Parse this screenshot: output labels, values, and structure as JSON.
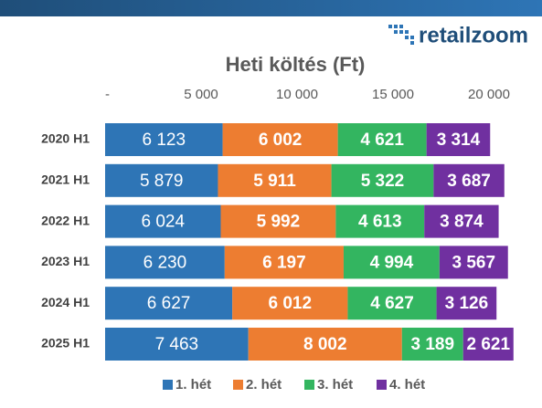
{
  "logo": "retailzoom",
  "chart_data": {
    "type": "stacked-bar-horizontal",
    "title": "Heti költés (Ft)",
    "categories": [
      "2020 H1",
      "2021 H1",
      "2022 H1",
      "2023 H1",
      "2024 H1",
      "2025 H1"
    ],
    "series": [
      {
        "name": "1. hét",
        "color": "#2e75b6",
        "values": [
          6123,
          5879,
          6024,
          6230,
          6627,
          7463
        ],
        "value_labels": [
          "6 123",
          "5 879",
          "6 024",
          "6 230",
          "6 627",
          "7 463"
        ]
      },
      {
        "name": "2. hét",
        "color": "#ed7d31",
        "values": [
          6002,
          5911,
          5992,
          6197,
          6012,
          8002
        ],
        "value_labels": [
          "6 002",
          "5 911",
          "5 992",
          "6 197",
          "6 012",
          "8 002"
        ]
      },
      {
        "name": "3. hét",
        "color": "#33b560",
        "values": [
          4621,
          5322,
          4613,
          4994,
          4627,
          3189
        ],
        "value_labels": [
          "4 621",
          "5 322",
          "4 613",
          "4 994",
          "4 627",
          "3 189"
        ]
      },
      {
        "name": "4. hét",
        "color": "#7030a0",
        "values": [
          3314,
          3687,
          3874,
          3567,
          3126,
          2621
        ],
        "value_labels": [
          "3 314",
          "3 687",
          "3 874",
          "3 567",
          "3 126",
          "2 621"
        ]
      }
    ],
    "xlim": [
      0,
      22000
    ],
    "xticks": [
      {
        "value": 0,
        "label": "-"
      },
      {
        "value": 5000,
        "label": "5 000"
      },
      {
        "value": 10000,
        "label": "10 000"
      },
      {
        "value": 15000,
        "label": "15 000"
      },
      {
        "value": 20000,
        "label": "20 000"
      }
    ],
    "grid": false,
    "legend": "bottom"
  }
}
